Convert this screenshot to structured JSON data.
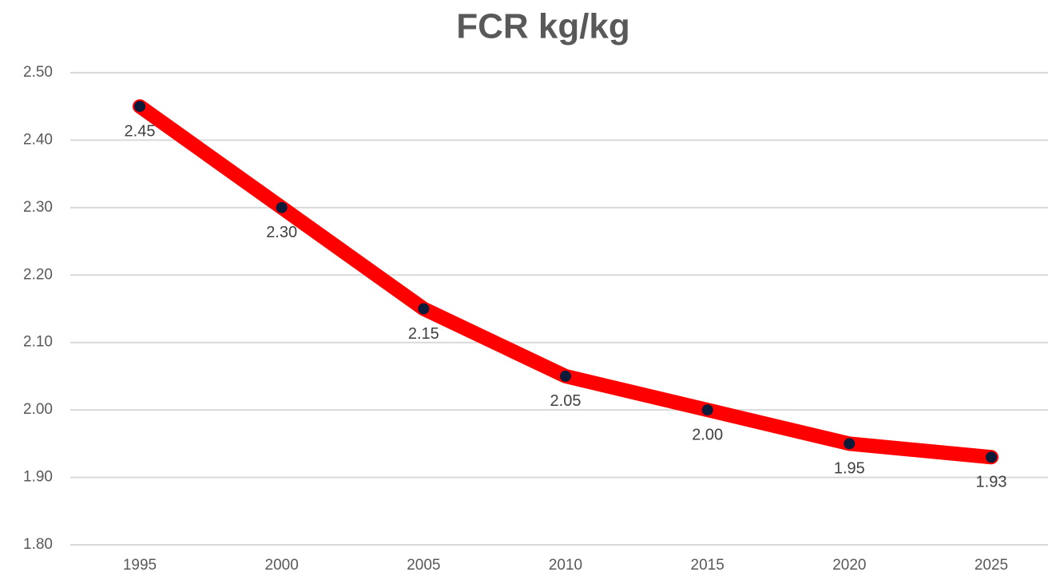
{
  "chart_data": {
    "type": "line",
    "title": "FCR kg/kg",
    "categories": [
      "1995",
      "2000",
      "2005",
      "2010",
      "2015",
      "2020",
      "2025"
    ],
    "series": [
      {
        "name": "FCR",
        "color": "#ff0000",
        "marker_color": "#0d1b3a",
        "values": [
          2.45,
          2.3,
          2.15,
          2.05,
          2.0,
          1.95,
          1.93
        ],
        "value_labels": [
          "2.45",
          "2.30",
          "2.15",
          "2.05",
          "2.00",
          "1.95",
          "1.93"
        ]
      }
    ],
    "ylim": [
      1.8,
      2.5
    ],
    "yticks": [
      {
        "value": 1.8,
        "label": "1.80"
      },
      {
        "value": 1.9,
        "label": "1.90"
      },
      {
        "value": 2.0,
        "label": "2.00"
      },
      {
        "value": 2.1,
        "label": "2.10"
      },
      {
        "value": 2.2,
        "label": "2.20"
      },
      {
        "value": 2.3,
        "label": "2.30"
      },
      {
        "value": 2.4,
        "label": "2.40"
      },
      {
        "value": 2.5,
        "label": "2.50"
      }
    ],
    "grid": true
  }
}
